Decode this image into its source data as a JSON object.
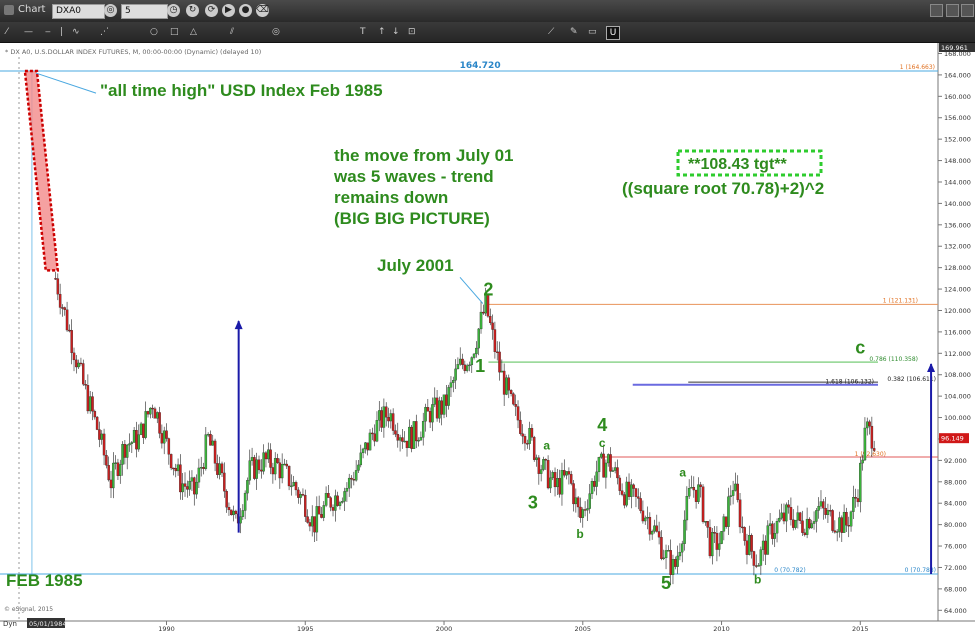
{
  "window": {
    "title": "Chart",
    "symbol": "DXA0",
    "interval": "5"
  },
  "toolbar": {
    "tools": [
      "pencil-icon",
      "line-icon",
      "hline-icon",
      "vline-icon",
      "elliott-icon",
      "fib-icon",
      "circle-icon",
      "rect-icon",
      "triangle-icon",
      "channel-icon",
      "text-icon",
      "arrow-up-icon",
      "arrow-down-icon",
      "callout-icon",
      "measure-icon",
      "cursor-icon",
      "pin-icon",
      "u-icon"
    ],
    "text_tool": "T",
    "u_label": "U"
  },
  "chart_data": {
    "type": "candlestick",
    "header": "* DX A0, U.S.DOLLAR INDEX FUTURES, M, 00:00-00:00 (Dynamic) (delayed 10)",
    "copyright": "© eSignal, 2015",
    "start_label": "05/01/1984",
    "dyn_label": "Dyn",
    "last_price": "96.149",
    "top_price_label": "169.961",
    "x_axis": {
      "min": 1984.0,
      "max": 2017.8,
      "ticks": [
        {
          "v": 1990,
          "label": "1990"
        },
        {
          "v": 1995,
          "label": "1995"
        },
        {
          "v": 2000,
          "label": "2000"
        },
        {
          "v": 2005,
          "label": "2005"
        },
        {
          "v": 2010,
          "label": "2010"
        },
        {
          "v": 2015,
          "label": "2015"
        }
      ]
    },
    "y_axis": {
      "min": 62,
      "max": 169.96,
      "ticks": [
        64,
        68,
        72,
        76,
        80,
        84,
        88,
        92,
        96,
        100,
        104,
        108,
        112,
        116,
        120,
        124,
        128,
        132,
        136,
        140,
        144,
        148,
        152,
        156,
        160,
        164,
        168
      ]
    },
    "close_series": [
      [
        1985.15,
        164.7
      ],
      [
        1986.0,
        126
      ],
      [
        1986.5,
        116
      ],
      [
        1987.0,
        106
      ],
      [
        1987.5,
        98
      ],
      [
        1988.0,
        88
      ],
      [
        1988.5,
        95
      ],
      [
        1989.0,
        96
      ],
      [
        1989.5,
        103
      ],
      [
        1990.0,
        95
      ],
      [
        1990.5,
        88
      ],
      [
        1991.0,
        86
      ],
      [
        1991.5,
        96
      ],
      [
        1992.0,
        88
      ],
      [
        1992.5,
        80
      ],
      [
        1993.0,
        90
      ],
      [
        1993.5,
        92
      ],
      [
        1994.0,
        91
      ],
      [
        1994.5,
        88
      ],
      [
        1995.0,
        84
      ],
      [
        1995.3,
        80
      ],
      [
        1995.8,
        84
      ],
      [
        1996.5,
        87
      ],
      [
        1997.0,
        92
      ],
      [
        1997.5,
        98
      ],
      [
        1998.0,
        101
      ],
      [
        1998.6,
        96
      ],
      [
        1999.0,
        97
      ],
      [
        1999.5,
        101
      ],
      [
        2000.0,
        102
      ],
      [
        2000.5,
        109
      ],
      [
        2001.0,
        112
      ],
      [
        2001.5,
        121
      ],
      [
        2002.0,
        109
      ],
      [
        2002.5,
        101
      ],
      [
        2003.0,
        97
      ],
      [
        2003.5,
        91
      ],
      [
        2004.0,
        87
      ],
      [
        2004.5,
        89
      ],
      [
        2004.9,
        81
      ],
      [
        2005.5,
        90
      ],
      [
        2005.9,
        92
      ],
      [
        2006.5,
        86
      ],
      [
        2007.0,
        84
      ],
      [
        2007.5,
        80
      ],
      [
        2008.0,
        74
      ],
      [
        2008.3,
        71.5
      ],
      [
        2008.9,
        87
      ],
      [
        2009.2,
        86
      ],
      [
        2009.6,
        76
      ],
      [
        2010.0,
        77
      ],
      [
        2010.4,
        88
      ],
      [
        2010.8,
        78
      ],
      [
        2011.3,
        73
      ],
      [
        2011.8,
        79
      ],
      [
        2012.4,
        82
      ],
      [
        2012.9,
        80
      ],
      [
        2013.5,
        83
      ],
      [
        2014.0,
        81
      ],
      [
        2014.5,
        80
      ],
      [
        2014.9,
        86
      ],
      [
        2015.2,
        98
      ],
      [
        2015.5,
        96.15
      ]
    ],
    "hlines": [
      {
        "y": 164.72,
        "color": "#4aa8e0",
        "label": "164.720",
        "right_label": "1 (164.663)"
      },
      {
        "y": 121.13,
        "color": "#e8935a",
        "right_label": "1 (121.131)"
      },
      {
        "y": 110.35,
        "color": "#8ed48e",
        "right_label": "0.786 (110.358)"
      },
      {
        "y": 106.61,
        "color": "#000000",
        "right_label": "0.382 (106.611)"
      },
      {
        "y": 106.13,
        "color": "#6a6ae0",
        "right_label": "1.618 (106.132)"
      },
      {
        "y": 92.63,
        "color": "#e05a5a",
        "right_label": "1 (92.630)"
      },
      {
        "y": 70.78,
        "color": "#4aa8e0",
        "right_label": "0 (70.788)",
        "left_label": "0 (70.782)"
      }
    ],
    "annotations": {
      "ath": "\"all time high\" USD Index Feb 1985",
      "move1": "the move from July 01",
      "move2": "was 5 waves - trend",
      "move3": "remains down",
      "move4": "(BIG BIG PICTURE)",
      "tgt1": "**108.43 tgt**",
      "tgt2": "((square root 70.78)+2)^2",
      "july": "July 2001",
      "feb": "FEB 1985",
      "waves": [
        {
          "t": "2",
          "x": 2001.6,
          "y": 122.8
        },
        {
          "t": "1",
          "x": 2001.3,
          "y": 108.5
        },
        {
          "t": "3",
          "x": 2003.2,
          "y": 83
        },
        {
          "t": "a",
          "x": 2003.7,
          "y": 94
        },
        {
          "t": "b",
          "x": 2004.9,
          "y": 77.5
        },
        {
          "t": "c",
          "x": 2005.7,
          "y": 94.5
        },
        {
          "t": "4",
          "x": 2005.7,
          "y": 97.5
        },
        {
          "t": "5",
          "x": 2008.0,
          "y": 68
        },
        {
          "t": "a",
          "x": 2008.6,
          "y": 89
        },
        {
          "t": "b",
          "x": 2011.3,
          "y": 69
        },
        {
          "t": "c",
          "x": 2015.0,
          "y": 112
        }
      ]
    },
    "colors": {
      "up": "#3cb33c",
      "down": "#c62020",
      "annotation": "#2e8b1e",
      "arrow": "#1a1aa8"
    }
  }
}
